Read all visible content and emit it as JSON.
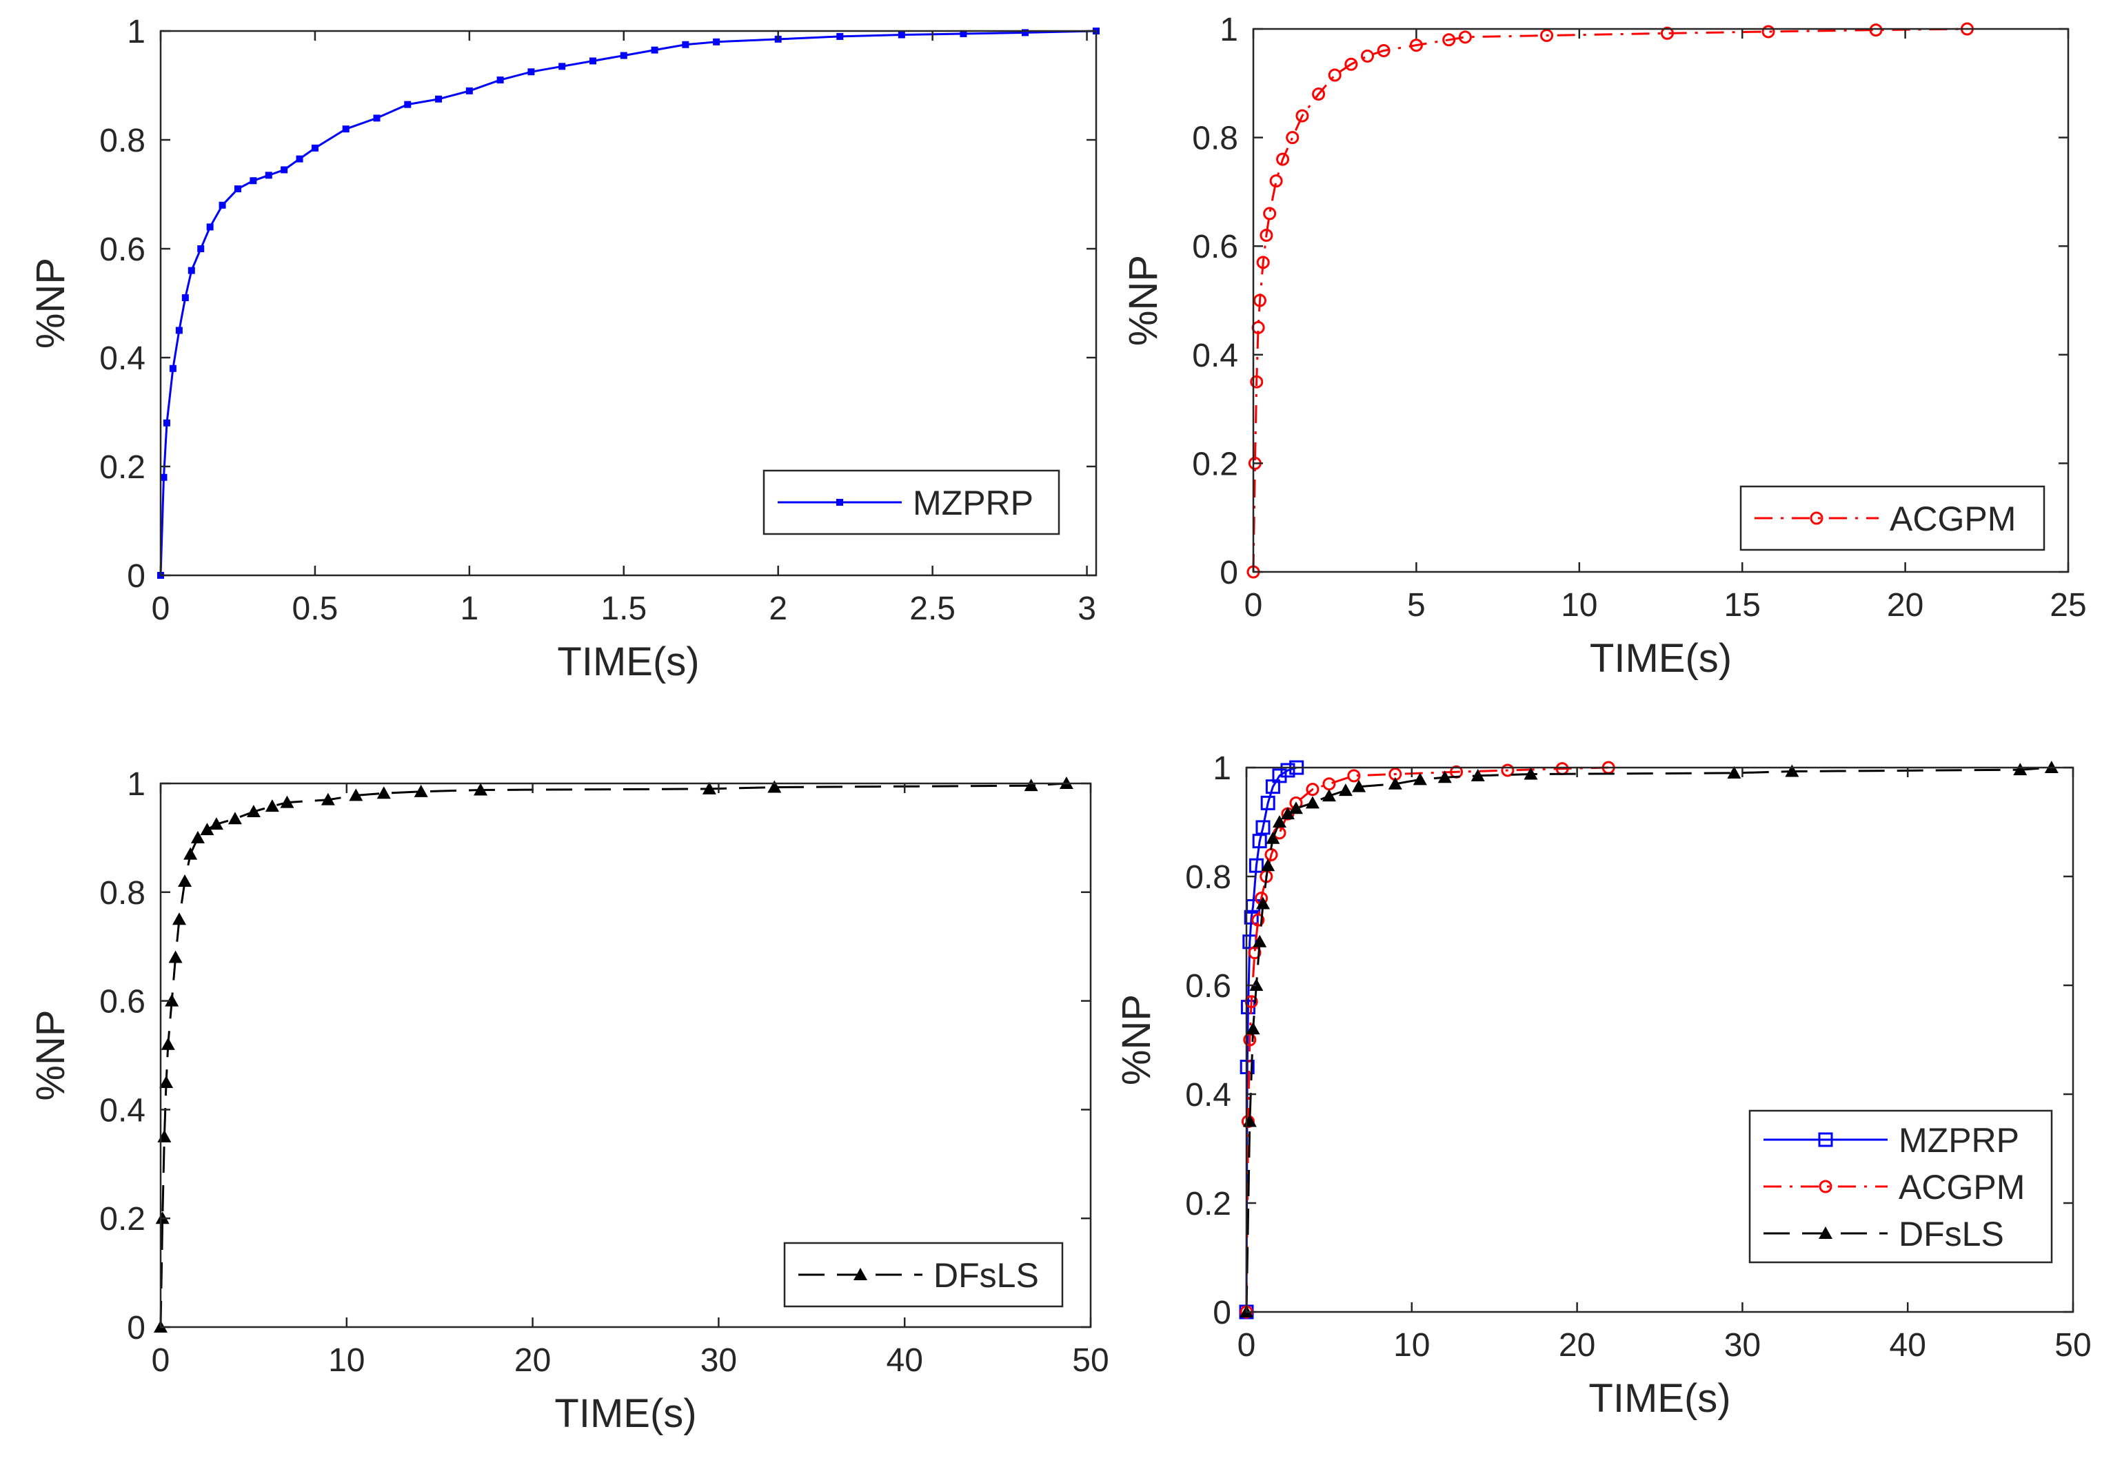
{
  "colors": {
    "mzprp": "#0000ff",
    "acgpm": "#ff0000",
    "dfsls": "#000000",
    "axis": "#262626"
  },
  "chart_data": [
    {
      "type": "line",
      "xlabel": "TIME(s)",
      "ylabel": "%NP",
      "xlim": [
        0,
        3.03
      ],
      "ylim": [
        0,
        1
      ],
      "xticks": [
        0,
        0.5,
        1,
        1.5,
        2,
        2.5,
        3
      ],
      "xtick_labels": [
        "0",
        "0.5",
        "1",
        "1.5",
        "2",
        "2.5",
        "3"
      ],
      "yticks": [
        0,
        0.2,
        0.4,
        0.6,
        0.8,
        1
      ],
      "ytick_labels": [
        "0",
        "0.2",
        "0.4",
        "0.6",
        "0.8",
        "1"
      ],
      "legend_position": "bottom-right",
      "series": [
        {
          "name": "MZPRP",
          "color": "#0000ff",
          "line_style": "solid",
          "marker": "square-filled",
          "x": [
            0,
            0.01,
            0.02,
            0.04,
            0.06,
            0.08,
            0.1,
            0.13,
            0.16,
            0.2,
            0.25,
            0.3,
            0.35,
            0.4,
            0.45,
            0.5,
            0.6,
            0.7,
            0.8,
            0.9,
            1.0,
            1.1,
            1.2,
            1.3,
            1.4,
            1.5,
            1.6,
            1.7,
            1.8,
            2.0,
            2.2,
            2.4,
            2.6,
            2.8,
            3.03
          ],
          "y": [
            0,
            0.18,
            0.28,
            0.38,
            0.45,
            0.51,
            0.56,
            0.6,
            0.64,
            0.68,
            0.71,
            0.725,
            0.735,
            0.745,
            0.765,
            0.785,
            0.82,
            0.84,
            0.865,
            0.875,
            0.89,
            0.91,
            0.925,
            0.935,
            0.945,
            0.955,
            0.965,
            0.975,
            0.98,
            0.985,
            0.99,
            0.993,
            0.995,
            0.997,
            1.0
          ]
        }
      ]
    },
    {
      "type": "line",
      "xlabel": "TIME(s)",
      "ylabel": "%NP",
      "xlim": [
        0,
        25
      ],
      "ylim": [
        0,
        1
      ],
      "xticks": [
        0,
        5,
        10,
        15,
        20,
        25
      ],
      "xtick_labels": [
        "0",
        "5",
        "10",
        "15",
        "20",
        "25"
      ],
      "yticks": [
        0,
        0.2,
        0.4,
        0.6,
        0.8,
        1
      ],
      "ytick_labels": [
        "0",
        "0.2",
        "0.4",
        "0.6",
        "0.8",
        "1"
      ],
      "legend_position": "bottom-right",
      "series": [
        {
          "name": "ACGPM",
          "color": "#ff0000",
          "line_style": "dashdot",
          "marker": "circle",
          "x": [
            0,
            0.05,
            0.1,
            0.15,
            0.2,
            0.3,
            0.4,
            0.5,
            0.7,
            0.9,
            1.2,
            1.5,
            2.0,
            2.5,
            3.0,
            3.5,
            4.0,
            5.0,
            6.0,
            6.5,
            9.0,
            12.7,
            15.8,
            19.1,
            21.9
          ],
          "y": [
            0,
            0.2,
            0.35,
            0.45,
            0.5,
            0.57,
            0.62,
            0.66,
            0.72,
            0.76,
            0.8,
            0.84,
            0.88,
            0.915,
            0.935,
            0.95,
            0.96,
            0.97,
            0.98,
            0.985,
            0.988,
            0.992,
            0.995,
            0.998,
            1.0
          ]
        }
      ]
    },
    {
      "type": "line",
      "xlabel": "TIME(s)",
      "ylabel": "%NP",
      "xlim": [
        0,
        50
      ],
      "ylim": [
        0,
        1
      ],
      "xticks": [
        0,
        10,
        20,
        30,
        40,
        50
      ],
      "xtick_labels": [
        "0",
        "10",
        "20",
        "30",
        "40",
        "50"
      ],
      "yticks": [
        0,
        0.2,
        0.4,
        0.6,
        0.8,
        1
      ],
      "ytick_labels": [
        "0",
        "0.2",
        "0.4",
        "0.6",
        "0.8",
        "1"
      ],
      "legend_position": "bottom-right",
      "series": [
        {
          "name": "DFsLS",
          "color": "#000000",
          "line_style": "dashed",
          "marker": "triangle-filled",
          "x": [
            0,
            0.1,
            0.2,
            0.3,
            0.4,
            0.6,
            0.8,
            1.0,
            1.3,
            1.6,
            2.0,
            2.5,
            3.0,
            4.0,
            5.0,
            6.0,
            6.8,
            9.0,
            10.5,
            12.0,
            14.0,
            17.2,
            29.5,
            33.0,
            46.8,
            48.7
          ],
          "y": [
            0,
            0.2,
            0.35,
            0.45,
            0.52,
            0.6,
            0.68,
            0.75,
            0.82,
            0.87,
            0.9,
            0.915,
            0.925,
            0.935,
            0.948,
            0.958,
            0.965,
            0.97,
            0.978,
            0.982,
            0.985,
            0.988,
            0.99,
            0.993,
            0.996,
            1.0
          ]
        }
      ]
    },
    {
      "type": "line",
      "xlabel": "TIME(s)",
      "ylabel": "%NP",
      "xlim": [
        0,
        50
      ],
      "ylim": [
        0,
        1
      ],
      "xticks": [
        0,
        10,
        20,
        30,
        40,
        50
      ],
      "xtick_labels": [
        "0",
        "10",
        "20",
        "30",
        "40",
        "50"
      ],
      "yticks": [
        0,
        0.2,
        0.4,
        0.6,
        0.8,
        1
      ],
      "ytick_labels": [
        "0",
        "0.2",
        "0.4",
        "0.6",
        "0.8",
        "1"
      ],
      "legend_position": "bottom-right",
      "series": [
        {
          "name": "MZPRP",
          "color": "#0000ff",
          "line_style": "solid",
          "marker": "square-open",
          "x": [
            0,
            0.05,
            0.1,
            0.2,
            0.3,
            0.4,
            0.6,
            0.8,
            1.0,
            1.3,
            1.6,
            2.0,
            2.5,
            3.03
          ],
          "y": [
            0,
            0.45,
            0.56,
            0.68,
            0.725,
            0.745,
            0.82,
            0.865,
            0.89,
            0.935,
            0.965,
            0.985,
            0.995,
            1.0
          ]
        },
        {
          "name": "ACGPM",
          "color": "#ff0000",
          "line_style": "dashdot",
          "marker": "circle",
          "x": [
            0,
            0.1,
            0.2,
            0.3,
            0.5,
            0.7,
            0.9,
            1.2,
            1.5,
            2.0,
            2.5,
            3.0,
            4.0,
            5.0,
            6.5,
            9.0,
            12.7,
            15.8,
            19.1,
            21.9
          ],
          "y": [
            0,
            0.35,
            0.5,
            0.57,
            0.66,
            0.72,
            0.76,
            0.8,
            0.84,
            0.88,
            0.915,
            0.935,
            0.96,
            0.97,
            0.985,
            0.988,
            0.992,
            0.995,
            0.998,
            1.0
          ]
        },
        {
          "name": "DFsLS",
          "color": "#000000",
          "line_style": "dashed",
          "marker": "triangle-filled",
          "x": [
            0,
            0.2,
            0.4,
            0.6,
            0.8,
            1.0,
            1.3,
            1.6,
            2.0,
            2.5,
            3.0,
            4.0,
            5.0,
            6.0,
            6.8,
            9.0,
            10.5,
            12.0,
            14.0,
            17.2,
            29.5,
            33.0,
            46.8,
            48.7
          ],
          "y": [
            0,
            0.35,
            0.52,
            0.6,
            0.68,
            0.75,
            0.82,
            0.87,
            0.9,
            0.915,
            0.925,
            0.935,
            0.948,
            0.958,
            0.965,
            0.97,
            0.978,
            0.982,
            0.985,
            0.988,
            0.99,
            0.993,
            0.996,
            1.0
          ]
        }
      ]
    }
  ]
}
